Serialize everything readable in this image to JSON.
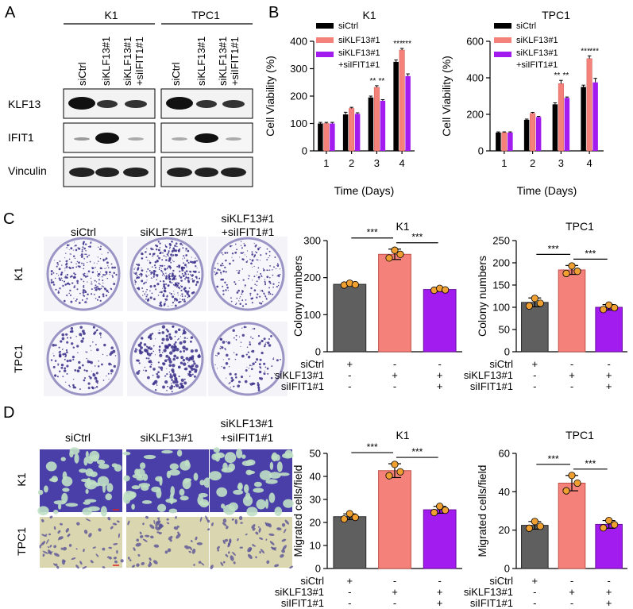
{
  "panel_letters": [
    "A",
    "B",
    "C",
    "D"
  ],
  "colors": {
    "black": "#000000",
    "pink": "#f4827b",
    "purple": "#a21cf0",
    "grey": "#5f5f5f",
    "dot": "#f0a030"
  },
  "western_blot": {
    "groups": [
      "K1",
      "TPC1"
    ],
    "lane_labels": [
      "siCtrl",
      "siKLF13#1",
      "siKLF13#1",
      "+siIFIT1#1"
    ],
    "rows": [
      "KLF13",
      "IFIT1",
      "Vinculin"
    ]
  },
  "plate_images": {
    "columns": [
      "siCtrl",
      "siKLF13#1",
      "siKLF13#1",
      "+siIFIT1#1"
    ],
    "rows": [
      "K1",
      "TPC1"
    ]
  },
  "migration_images": {
    "columns": [
      "siCtrl",
      "siKLF13#1",
      "siKLF13#1",
      "+siIFIT1#1"
    ],
    "rows": [
      "K1",
      "TPC1"
    ]
  },
  "treatment_table": {
    "rows": [
      {
        "label": "siCtrl",
        "values": [
          "+",
          "-",
          "-"
        ]
      },
      {
        "label": "siKLF13#1",
        "values": [
          "-",
          "+",
          "+"
        ]
      },
      {
        "label": "siIFIT1#1",
        "values": [
          "-",
          "-",
          "+"
        ]
      }
    ]
  },
  "chart_data": [
    {
      "id": "viability-k1",
      "type": "bar",
      "title": "K1",
      "xlabel": "Time (Days)",
      "ylabel": "Cell Viability (%)",
      "categories": [
        "1",
        "2",
        "3",
        "4"
      ],
      "ylim": [
        0,
        400
      ],
      "yticks": [
        0,
        100,
        200,
        300,
        400
      ],
      "legend": [
        "siCtrl",
        "siKLF13#1",
        "siKLF13#1",
        "+siIFIT1#1"
      ],
      "series": [
        {
          "values": [
            100,
            133,
            195,
            325
          ],
          "errors": [
            4,
            8,
            5,
            7
          ]
        },
        {
          "values": [
            100,
            155,
            232,
            368
          ],
          "errors": [
            4,
            4,
            6,
            6
          ]
        },
        {
          "values": [
            100,
            135,
            183,
            273
          ],
          "errors": [
            4,
            4,
            4,
            8
          ]
        }
      ],
      "significance": [
        {
          "category": 2,
          "labels": [
            "**",
            "**"
          ]
        },
        {
          "category": 3,
          "labels": [
            "***",
            "***"
          ]
        }
      ]
    },
    {
      "id": "viability-tpc1",
      "type": "bar",
      "title": "TPC1",
      "xlabel": "Time (Days)",
      "ylabel": "Cell Viability (%)",
      "categories": [
        "1",
        "2",
        "3",
        "4"
      ],
      "ylim": [
        0,
        600
      ],
      "yticks": [
        0,
        200,
        400,
        600
      ],
      "legend": [
        "siCtrl",
        "siKLF13#1",
        "siKLF13#1",
        "+siIFIT1#1"
      ],
      "series": [
        {
          "values": [
            100,
            170,
            255,
            350
          ],
          "errors": [
            4,
            4,
            8,
            10
          ]
        },
        {
          "values": [
            100,
            205,
            368,
            505
          ],
          "errors": [
            4,
            6,
            18,
            15
          ]
        },
        {
          "values": [
            100,
            185,
            290,
            375
          ],
          "errors": [
            4,
            4,
            5,
            22
          ]
        }
      ],
      "significance": [
        {
          "category": 2,
          "labels": [
            "**",
            "**"
          ]
        },
        {
          "category": 3,
          "labels": [
            "***",
            "***"
          ]
        }
      ]
    },
    {
      "id": "colony-k1",
      "type": "bar",
      "title": "K1",
      "ylabel": "Colony numbers",
      "categories": [
        "siCtrl",
        "siKLF13#1",
        "siKLF13#1+siIFIT1#1"
      ],
      "ylim": [
        0,
        300
      ],
      "yticks": [
        0,
        100,
        200,
        300
      ],
      "values": [
        182,
        263,
        168
      ],
      "errors": [
        4,
        14,
        5
      ],
      "points": [
        [
          180,
          185,
          181
        ],
        [
          253,
          274,
          263
        ],
        [
          166,
          171,
          167
        ]
      ],
      "brackets": [
        {
          "from": 0,
          "to": 1,
          "label": "***"
        },
        {
          "from": 1,
          "to": 2,
          "label": "***"
        }
      ]
    },
    {
      "id": "colony-tpc1",
      "type": "bar",
      "title": "TPC1",
      "ylabel": "Colony numbers",
      "categories": [
        "siCtrl",
        "siKLF13#1",
        "siKLF13#1+siIFIT1#1"
      ],
      "ylim": [
        0,
        250
      ],
      "yticks": [
        0,
        50,
        100,
        150,
        200,
        250
      ],
      "values": [
        111,
        184,
        100
      ],
      "errors": [
        10,
        10,
        6
      ],
      "points": [
        [
          103,
          120,
          109
        ],
        [
          176,
          193,
          181
        ],
        [
          95,
          105,
          99
        ]
      ],
      "brackets": [
        {
          "from": 0,
          "to": 1,
          "label": "***"
        },
        {
          "from": 1,
          "to": 2,
          "label": "***"
        }
      ]
    },
    {
      "id": "migration-k1",
      "type": "bar",
      "title": "K1",
      "ylabel": "Migrated cells/field",
      "categories": [
        "siCtrl",
        "siKLF13#1",
        "siKLF13#1+siIFIT1#1"
      ],
      "ylim": [
        0,
        50
      ],
      "yticks": [
        0,
        10,
        20,
        30,
        40,
        50
      ],
      "values": [
        22.5,
        42.5,
        25.5
      ],
      "errors": [
        1.2,
        3,
        1.5
      ],
      "points": [
        [
          21.5,
          23.8,
          22.2
        ],
        [
          40.3,
          45.2,
          42
        ],
        [
          24.3,
          27,
          25.3
        ]
      ],
      "brackets": [
        {
          "from": 0,
          "to": 1,
          "label": "***"
        },
        {
          "from": 1,
          "to": 2,
          "label": "***"
        }
      ]
    },
    {
      "id": "migration-tpc1",
      "type": "bar",
      "title": "TPC1",
      "ylabel": "Migrated cells/field",
      "categories": [
        "siCtrl",
        "siKLF13#1",
        "siKLF13#1+siIFIT1#1"
      ],
      "ylim": [
        0,
        60
      ],
      "yticks": [
        0,
        20,
        40,
        60
      ],
      "values": [
        22.5,
        44.5,
        23
      ],
      "errors": [
        2,
        4,
        2
      ],
      "points": [
        [
          21,
          24.5,
          22
        ],
        [
          40.5,
          48.5,
          44.5
        ],
        [
          21.2,
          25,
          22.8
        ]
      ],
      "brackets": [
        {
          "from": 0,
          "to": 1,
          "label": "***"
        },
        {
          "from": 1,
          "to": 2,
          "label": "***"
        }
      ]
    }
  ]
}
